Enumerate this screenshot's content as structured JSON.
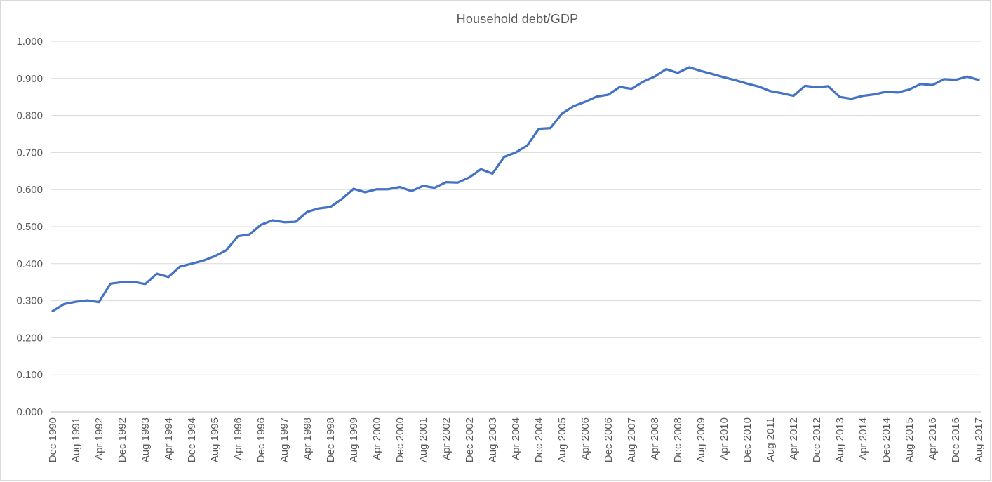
{
  "chart_data": {
    "type": "line",
    "title": "Household debt/GDP",
    "xlabel": "",
    "ylabel": "",
    "ylim": [
      0.0,
      1.0
    ],
    "y_tick_step": 0.1,
    "y_tick_labels": [
      "0.000",
      "0.100",
      "0.200",
      "0.300",
      "0.400",
      "0.500",
      "0.600",
      "0.700",
      "0.800",
      "0.900",
      "1.000"
    ],
    "grid": true,
    "legend": "none",
    "x_tick_labels_shown_every_2nd_point": true,
    "x_tick_labels": [
      "Dec 1990",
      "Aug 1991",
      "Apr 1992",
      "Dec 1992",
      "Aug 1993",
      "Apr 1994",
      "Dec 1994",
      "Aug 1995",
      "Apr 1996",
      "Dec 1996",
      "Aug 1997",
      "Apr 1998",
      "Dec 1998",
      "Aug 1999",
      "Apr 2000",
      "Dec 2000",
      "Aug 2001",
      "Apr 2002",
      "Dec 2002",
      "Aug 2003",
      "Apr 2004",
      "Dec 2004",
      "Aug 2005",
      "Apr 2006",
      "Dec 2006",
      "Aug 2007",
      "Apr 2008",
      "Dec 2008",
      "Aug 2009",
      "Apr 2010",
      "Dec 2010",
      "Aug 2011",
      "Apr 2012",
      "Dec 2012",
      "Aug 2013",
      "Apr 2014",
      "Dec 2014",
      "Aug 2015",
      "Apr 2016",
      "Dec 2016",
      "Aug 2017"
    ],
    "series": [
      {
        "name": "Household debt/GDP",
        "color": "#4472C4",
        "values": [
          0.272,
          0.291,
          0.297,
          0.301,
          0.296,
          0.346,
          0.35,
          0.351,
          0.345,
          0.373,
          0.364,
          0.392,
          0.4,
          0.408,
          0.42,
          0.436,
          0.474,
          0.479,
          0.505,
          0.517,
          0.512,
          0.513,
          0.54,
          0.549,
          0.553,
          0.575,
          0.602,
          0.593,
          0.601,
          0.601,
          0.607,
          0.596,
          0.61,
          0.605,
          0.62,
          0.619,
          0.633,
          0.655,
          0.643,
          0.688,
          0.7,
          0.719,
          0.764,
          0.766,
          0.805,
          0.825,
          0.837,
          0.851,
          0.856,
          0.877,
          0.872,
          0.891,
          0.905,
          0.925,
          0.915,
          0.93,
          0.92,
          0.912,
          0.903,
          0.895,
          0.886,
          0.878,
          0.866,
          0.86,
          0.853,
          0.88,
          0.876,
          0.879,
          0.85,
          0.845,
          0.853,
          0.857,
          0.864,
          0.862,
          0.87,
          0.885,
          0.882,
          0.898,
          0.896,
          0.905,
          0.896
        ]
      }
    ],
    "colors": {
      "line": "#4472C4",
      "gridline": "#d9d9d9",
      "axis_line": "#bfbfbf",
      "label_text": "#595959",
      "title_text": "#595959",
      "background": "#ffffff",
      "chart_border": "#d9d9d9"
    }
  }
}
